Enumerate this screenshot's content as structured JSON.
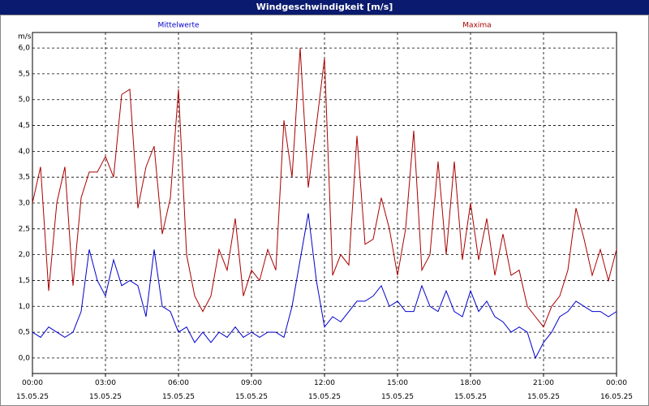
{
  "chart_data": {
    "type": "line",
    "title": "Windgeschwindigkeit [m/s]",
    "y_unit": "m/s",
    "x": [
      0,
      20,
      40,
      60,
      80,
      100,
      120,
      140,
      160,
      180,
      200,
      220,
      240,
      260,
      280,
      300,
      320,
      340,
      360,
      380,
      400,
      420,
      440,
      460,
      480,
      500,
      520,
      540,
      560,
      580,
      600,
      620,
      640,
      660,
      680,
      700,
      720,
      740,
      760,
      780,
      800,
      820,
      840,
      860,
      880,
      900,
      920,
      940,
      960,
      980,
      1000,
      1020,
      1040,
      1060,
      1080,
      1100,
      1120,
      1140,
      1160,
      1180,
      1200,
      1220,
      1240,
      1260,
      1280,
      1300,
      1320,
      1340,
      1360,
      1380,
      1400,
      1420,
      1440
    ],
    "series": [
      {
        "name": "Mittelwerte",
        "color": "#0000cc",
        "values": [
          0.5,
          0.4,
          0.6,
          0.5,
          0.4,
          0.5,
          0.9,
          2.1,
          1.5,
          1.2,
          1.9,
          1.4,
          1.5,
          1.4,
          0.8,
          2.1,
          1.0,
          0.9,
          0.5,
          0.6,
          0.3,
          0.5,
          0.3,
          0.5,
          0.4,
          0.6,
          0.4,
          0.5,
          0.4,
          0.5,
          0.5,
          0.4,
          1.0,
          1.9,
          2.8,
          1.5,
          0.6,
          0.8,
          0.7,
          0.9,
          1.1,
          1.1,
          1.2,
          1.4,
          1.0,
          1.1,
          0.9,
          0.9,
          1.4,
          1.0,
          0.9,
          1.3,
          0.9,
          0.8,
          1.3,
          0.9,
          1.1,
          0.8,
          0.7,
          0.5,
          0.6,
          0.5,
          0.0,
          0.3,
          0.5,
          0.8,
          0.9,
          1.1,
          1.0,
          0.9,
          0.9,
          0.8,
          0.9
        ]
      },
      {
        "name": "Maxima",
        "color": "#aa0000",
        "values": [
          3.0,
          3.7,
          1.3,
          3.0,
          3.7,
          1.4,
          3.1,
          3.6,
          3.6,
          3.9,
          3.5,
          5.1,
          5.2,
          2.9,
          3.7,
          4.1,
          2.4,
          3.1,
          5.2,
          2.0,
          1.2,
          0.9,
          1.2,
          2.1,
          1.7,
          2.7,
          1.2,
          1.7,
          1.5,
          2.1,
          1.7,
          4.6,
          3.5,
          6.0,
          3.3,
          4.5,
          5.8,
          1.6,
          2.0,
          1.8,
          4.3,
          2.2,
          2.3,
          3.1,
          2.5,
          1.6,
          2.5,
          4.4,
          1.7,
          2.0,
          3.8,
          2.0,
          3.8,
          1.9,
          3.0,
          1.9,
          2.7,
          1.6,
          2.4,
          1.6,
          1.7,
          1.0,
          0.8,
          0.6,
          1.0,
          1.2,
          1.7,
          2.9,
          2.3,
          1.6,
          2.1,
          1.5,
          2.1
        ]
      }
    ],
    "xlim": [
      0,
      1440
    ],
    "xticks": [
      {
        "value": 0,
        "label": "00:00\n15.05.25"
      },
      {
        "value": 180,
        "label": "03:00\n15.05.25"
      },
      {
        "value": 360,
        "label": "06:00\n15.05.25"
      },
      {
        "value": 540,
        "label": "09:00\n15.05.25"
      },
      {
        "value": 720,
        "label": "12:00\n15.05.25"
      },
      {
        "value": 900,
        "label": "15:00\n15.05.25"
      },
      {
        "value": 1080,
        "label": "18:00\n15.05.25"
      },
      {
        "value": 1260,
        "label": "21:00\n15.05.25"
      },
      {
        "value": 1440,
        "label": "00:00\n16.05.25"
      }
    ],
    "ylim": [
      -0.3,
      6.3
    ],
    "yticks": [
      {
        "value": 0,
        "label": "0,0"
      },
      {
        "value": 0.5,
        "label": "0,5"
      },
      {
        "value": 1,
        "label": "1,0"
      },
      {
        "value": 1.5,
        "label": "1,5"
      },
      {
        "value": 2,
        "label": "2,0"
      },
      {
        "value": 2.5,
        "label": "2,5"
      },
      {
        "value": 3,
        "label": "3,0"
      },
      {
        "value": 3.5,
        "label": "3,5"
      },
      {
        "value": 4,
        "label": "4,0"
      },
      {
        "value": 4.5,
        "label": "4,5"
      },
      {
        "value": 5,
        "label": "5,0"
      },
      {
        "value": 5.5,
        "label": "5,5"
      },
      {
        "value": 6,
        "label": "6,0"
      }
    ],
    "grid": true
  }
}
